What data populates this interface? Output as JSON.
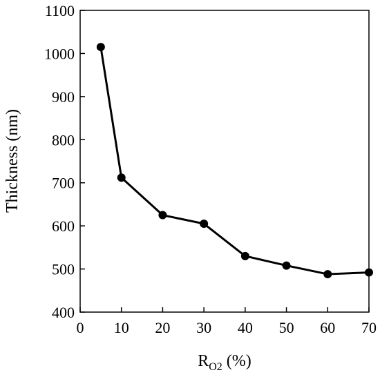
{
  "chart_data": {
    "type": "line",
    "xlabel": "R",
    "xlabel_subscript": "O2",
    "xlabel_unit": " (%)",
    "ylabel": "Thickness (nm)",
    "xlim": [
      0,
      70
    ],
    "ylim": [
      400,
      1100
    ],
    "xticks": [
      0,
      10,
      20,
      30,
      40,
      50,
      60,
      70
    ],
    "yticks": [
      400,
      500,
      600,
      700,
      800,
      900,
      1000,
      1100
    ],
    "grid": false,
    "legend": "none",
    "series": [
      {
        "x": [
          5,
          10,
          20,
          30,
          40,
          50,
          60,
          70
        ],
        "y": [
          1015,
          712,
          625,
          605,
          530,
          508,
          488,
          492
        ],
        "color": "#000000",
        "marker": "circle"
      }
    ]
  }
}
